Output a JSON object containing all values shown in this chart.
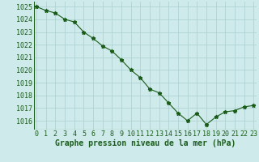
{
  "x": [
    0,
    1,
    2,
    3,
    4,
    5,
    6,
    7,
    8,
    9,
    10,
    11,
    12,
    13,
    14,
    15,
    16,
    17,
    18,
    19,
    20,
    21,
    22,
    23
  ],
  "y": [
    1025.0,
    1024.7,
    1024.5,
    1024.0,
    1023.8,
    1023.0,
    1022.5,
    1021.9,
    1021.5,
    1020.8,
    1020.0,
    1019.4,
    1018.5,
    1018.2,
    1017.4,
    1016.6,
    1016.0,
    1016.6,
    1015.7,
    1016.3,
    1016.7,
    1016.8,
    1017.1,
    1017.2
  ],
  "xlim": [
    -0.3,
    23.3
  ],
  "ylim": [
    1015.3,
    1025.4
  ],
  "yticks": [
    1016,
    1017,
    1018,
    1019,
    1020,
    1021,
    1022,
    1023,
    1024,
    1025
  ],
  "xticks": [
    0,
    1,
    2,
    3,
    4,
    5,
    6,
    7,
    8,
    9,
    10,
    11,
    12,
    13,
    14,
    15,
    16,
    17,
    18,
    19,
    20,
    21,
    22,
    23
  ],
  "xlabel": "Graphe pression niveau de la mer (hPa)",
  "line_color": "#1a5c1a",
  "marker": "*",
  "marker_size": 3.5,
  "bg_color": "#ceeaea",
  "grid_color": "#aacece",
  "tick_label_color": "#1a5c1a",
  "axis_label_color": "#1a5c1a",
  "label_fontsize": 7.0,
  "tick_fontsize": 6.0
}
